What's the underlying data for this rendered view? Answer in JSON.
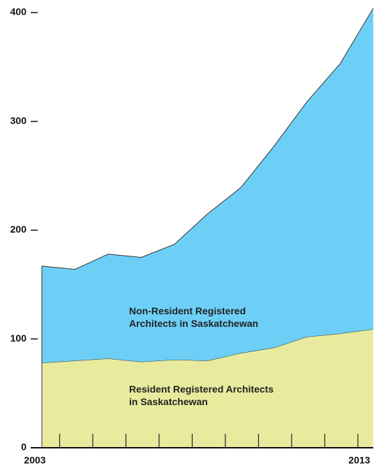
{
  "chart_data": {
    "type": "stacked_area",
    "categories": [
      "2003",
      null,
      null,
      null,
      null,
      null,
      null,
      null,
      null,
      null,
      "2013"
    ],
    "series": [
      {
        "name": "Resident Registered Architects in Saskatchewan",
        "color": "#e8eb9e",
        "values": [
          78,
          80,
          82,
          79,
          81,
          80,
          87,
          92,
          102,
          105,
          109
        ]
      },
      {
        "name": "Non-Resident Registered Architects in Saskatchewan",
        "color": "#6dcff6",
        "values": [
          89,
          84,
          96,
          96,
          106,
          135,
          152,
          185,
          216,
          248,
          295
        ]
      }
    ],
    "ylim": [
      0,
      400
    ],
    "yticks": [
      0,
      100,
      200,
      300,
      400
    ]
  }
}
